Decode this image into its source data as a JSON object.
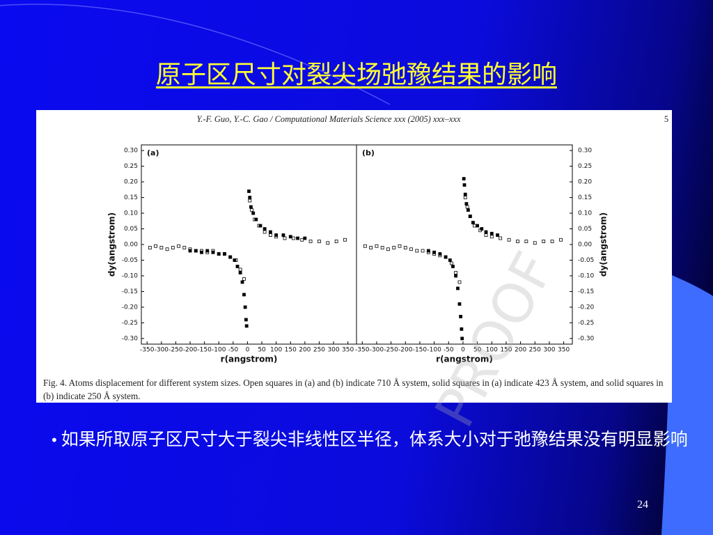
{
  "slide": {
    "title": "原子区尺寸对裂尖场弛豫结果的影响",
    "bullet": "如果所取原子区尺寸大于裂尖非线性区半径，体系大小对于弛豫结果没有明显影响",
    "page_number": "24"
  },
  "figure": {
    "header": "Y.-F. Guo, Y.-C. Gao / Computational Materials Science xxx (2005) xxx–xxx",
    "page": "5",
    "caption": "Fig. 4.  Atoms displacement for different system sizes. Open squares in (a) and (b) indicate 710 Å system, solid squares in (a) indicate 423 Å system, and solid squares in (b) indicate 250 Å system.",
    "watermark": "PROOF"
  },
  "chart_data": [
    {
      "type": "scatter",
      "panel_label": "(a)",
      "ylabel": "dy(angstrom)",
      "xlabel": "r(angstrom)",
      "yaxis_side": "left",
      "xlim": [
        -370,
        380
      ],
      "ylim": [
        -0.318,
        0.318
      ],
      "xticks": [
        -350,
        -300,
        -250,
        -200,
        -150,
        -100,
        -50,
        0,
        50,
        100,
        150,
        200,
        250,
        300,
        350
      ],
      "yticks": [
        {
          "value": 0.3,
          "label": "0.30"
        },
        {
          "value": 0.25,
          "label": "0.25"
        },
        {
          "value": 0.2,
          "label": "0.20"
        },
        {
          "value": 0.15,
          "label": "0.15"
        },
        {
          "value": 0.1,
          "label": "0.10"
        },
        {
          "value": 0.05,
          "label": "0.05"
        },
        {
          "value": 0,
          "label": "0.00"
        },
        {
          "value": -0.05,
          "label": "-0.05"
        },
        {
          "value": -0.1,
          "label": "-0.10"
        },
        {
          "value": -0.15,
          "label": "-0.15"
        },
        {
          "value": -0.2,
          "label": "-0.20"
        },
        {
          "value": -0.25,
          "label": "-0.25"
        },
        {
          "value": -0.3,
          "label": "-0.30"
        }
      ],
      "series": [
        {
          "marker": "open",
          "color": "#000000",
          "x": [
            -340,
            -320,
            -300,
            -280,
            -260,
            -240,
            -220,
            -200,
            -180,
            -160,
            -140,
            -120,
            -100,
            -80,
            -60,
            -40,
            -25,
            -12,
            8,
            15,
            25,
            40,
            60,
            80,
            100,
            130,
            160,
            190,
            220,
            250,
            280,
            310,
            340
          ],
          "values": [
            -0.01,
            -0.005,
            -0.01,
            -0.015,
            -0.01,
            -0.005,
            -0.01,
            -0.015,
            -0.02,
            -0.02,
            -0.025,
            -0.02,
            -0.03,
            -0.03,
            -0.04,
            -0.05,
            -0.08,
            -0.11,
            0.14,
            0.11,
            0.08,
            0.06,
            0.04,
            0.03,
            0.025,
            0.02,
            0.02,
            0.015,
            0.01,
            0.01,
            0.005,
            0.01,
            0.015
          ]
        },
        {
          "marker": "solid",
          "color": "#000000",
          "x": [
            -200,
            -180,
            -160,
            -140,
            -120,
            -100,
            -80,
            -60,
            -45,
            -35,
            -25,
            -18,
            -12,
            -8,
            -5,
            -3,
            5,
            8,
            12,
            20,
            30,
            45,
            60,
            80,
            100,
            125,
            150,
            175,
            200
          ],
          "values": [
            -0.02,
            -0.02,
            -0.025,
            -0.02,
            -0.025,
            -0.03,
            -0.03,
            -0.04,
            -0.05,
            -0.07,
            -0.09,
            -0.12,
            -0.16,
            -0.2,
            -0.24,
            -0.26,
            0.17,
            0.15,
            0.12,
            0.1,
            0.08,
            0.06,
            0.05,
            0.04,
            0.03,
            0.03,
            0.025,
            0.02,
            0.02
          ]
        }
      ]
    },
    {
      "type": "scatter",
      "panel_label": "(b)",
      "ylabel": "dy(angstrom)",
      "xlabel": "r(angstrom)",
      "yaxis_side": "right",
      "xlim": [
        -370,
        380
      ],
      "ylim": [
        -0.318,
        0.318
      ],
      "xticks": [
        -350,
        -300,
        -250,
        -200,
        -150,
        -100,
        -50,
        0,
        50,
        100,
        150,
        200,
        250,
        300,
        350
      ],
      "yticks": [
        {
          "value": 0.3,
          "label": "0.30"
        },
        {
          "value": 0.25,
          "label": "0.25"
        },
        {
          "value": 0.2,
          "label": "0.20"
        },
        {
          "value": 0.15,
          "label": "0.15"
        },
        {
          "value": 0.1,
          "label": "0.10"
        },
        {
          "value": 0.05,
          "label": "0.05"
        },
        {
          "value": 0,
          "label": "0.00"
        },
        {
          "value": -0.05,
          "label": "-0.05"
        },
        {
          "value": -0.1,
          "label": "-0.10"
        },
        {
          "value": -0.15,
          "label": "-0.15"
        },
        {
          "value": -0.2,
          "label": "-0.20"
        },
        {
          "value": -0.25,
          "label": "-0.25"
        },
        {
          "value": -0.3,
          "label": "-0.30"
        }
      ],
      "series": [
        {
          "marker": "open",
          "color": "#000000",
          "x": [
            -340,
            -320,
            -300,
            -280,
            -260,
            -240,
            -220,
            -200,
            -180,
            -160,
            -140,
            -120,
            -100,
            -80,
            -60,
            -40,
            -25,
            -12,
            8,
            15,
            25,
            40,
            60,
            80,
            100,
            130,
            160,
            190,
            220,
            250,
            280,
            310,
            340
          ],
          "values": [
            -0.005,
            -0.01,
            -0.005,
            -0.01,
            -0.015,
            -0.01,
            -0.005,
            -0.01,
            -0.015,
            -0.02,
            -0.02,
            -0.025,
            -0.03,
            -0.035,
            -0.04,
            -0.06,
            -0.09,
            -0.12,
            0.15,
            0.12,
            0.09,
            0.06,
            0.045,
            0.03,
            0.025,
            0.02,
            0.015,
            0.01,
            0.01,
            0.005,
            0.01,
            0.01,
            0.015
          ]
        },
        {
          "marker": "solid",
          "color": "#000000",
          "x": [
            -120,
            -100,
            -80,
            -60,
            -45,
            -35,
            -25,
            -18,
            -12,
            -8,
            -5,
            -3,
            3,
            5,
            8,
            12,
            18,
            25,
            35,
            50,
            65,
            80,
            100,
            120
          ],
          "values": [
            -0.02,
            -0.025,
            -0.03,
            -0.04,
            -0.05,
            -0.07,
            -0.1,
            -0.14,
            -0.19,
            -0.23,
            -0.27,
            -0.3,
            0.21,
            0.19,
            0.16,
            0.13,
            0.11,
            0.09,
            0.07,
            0.06,
            0.05,
            0.04,
            0.035,
            0.03
          ]
        }
      ]
    }
  ]
}
